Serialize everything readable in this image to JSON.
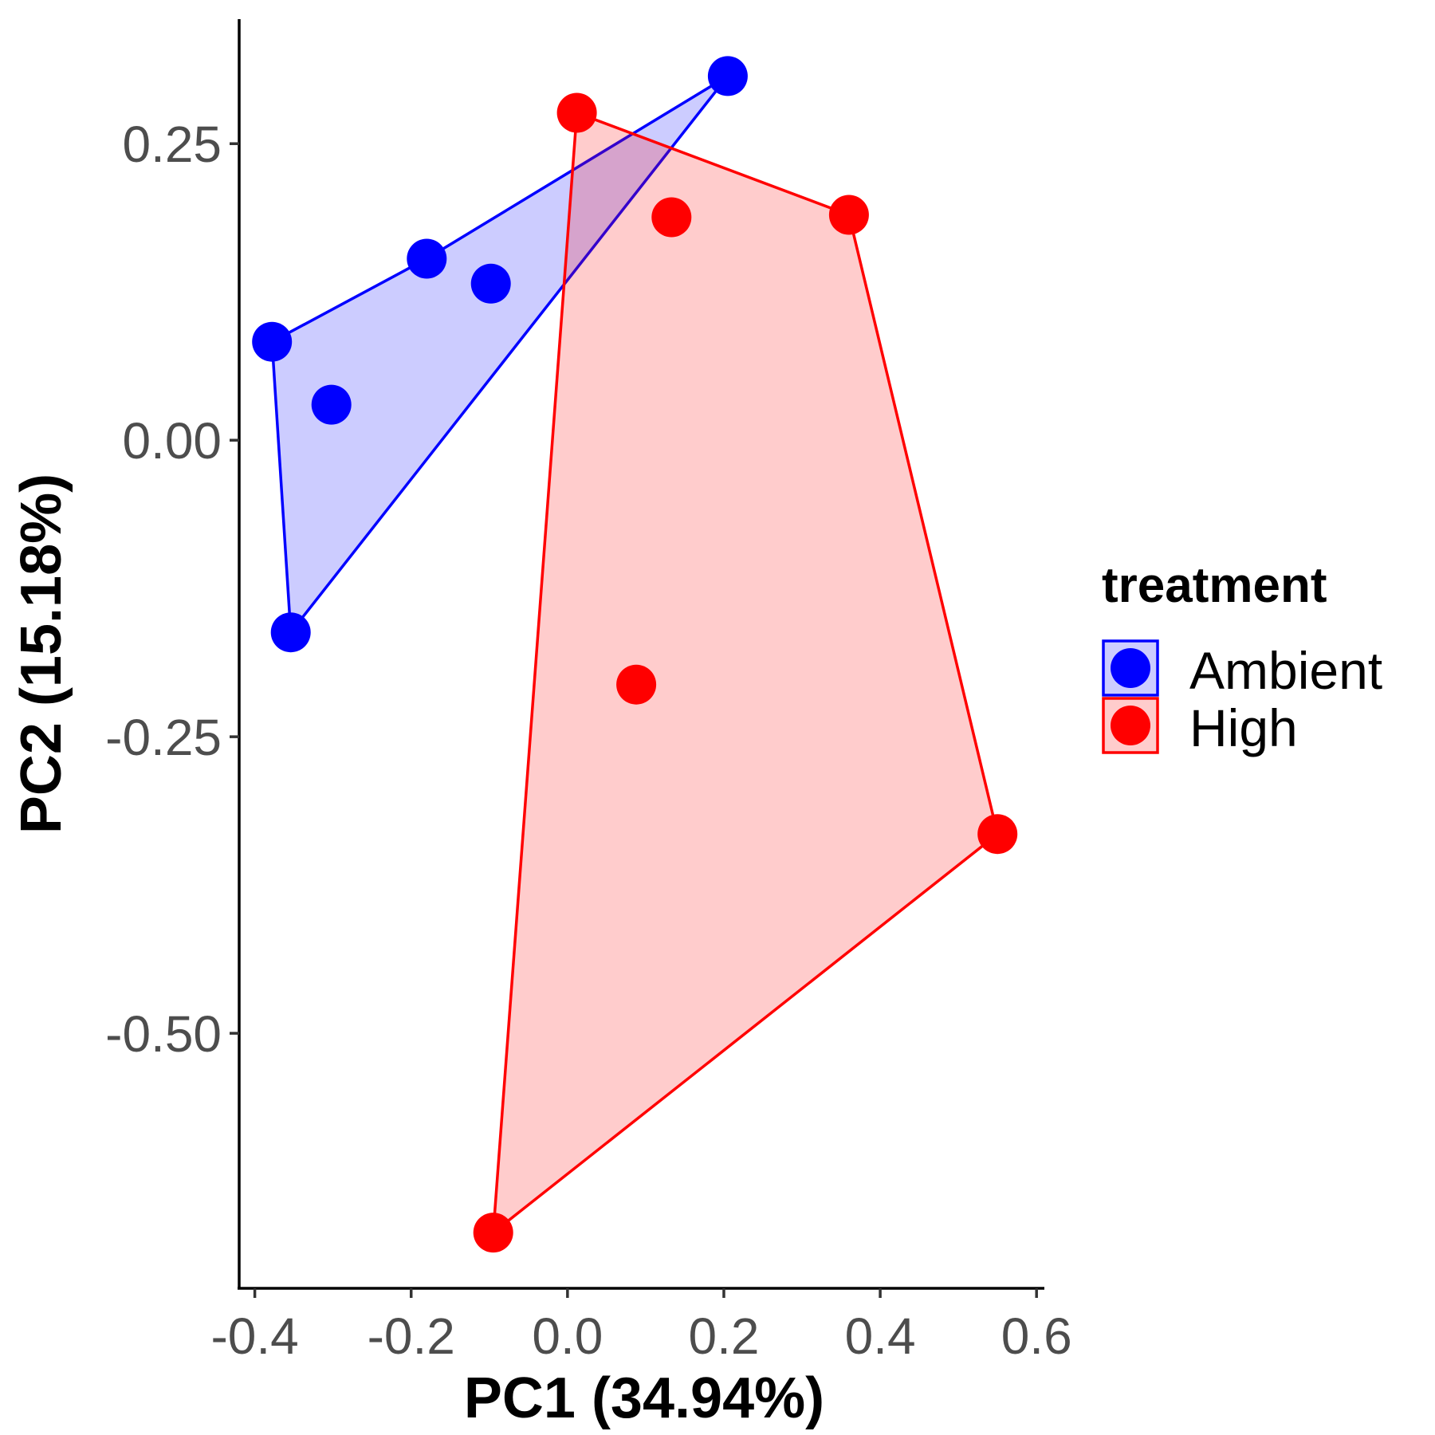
{
  "chart_data": {
    "type": "scatter",
    "title": "",
    "xlabel": "PC1 (34.94%)",
    "ylabel": "PC2 (15.18%)",
    "xlim": [
      -0.42,
      0.61
    ],
    "ylim": [
      -0.715,
      0.355
    ],
    "x_ticks": [
      -0.4,
      -0.2,
      0.0,
      0.2,
      0.4,
      0.6
    ],
    "x_tick_labels": [
      "-0.4",
      "-0.2",
      "0.0",
      "0.2",
      "0.4",
      "0.6"
    ],
    "y_ticks": [
      0.25,
      0.0,
      -0.25,
      -0.5
    ],
    "y_tick_labels": [
      "0.25",
      "0.00",
      "-0.25",
      "-0.50"
    ],
    "grid": false,
    "legend": {
      "title": "treatment",
      "position": "right"
    },
    "series": [
      {
        "name": "Ambient",
        "color": "#0000ff",
        "fill": "#0000ff",
        "hull": [
          {
            "x": -0.378,
            "y": 0.083
          },
          {
            "x": -0.354,
            "y": -0.162
          },
          {
            "x": 0.205,
            "y": 0.307
          },
          {
            "x": -0.18,
            "y": 0.153
          }
        ],
        "points": [
          {
            "x": -0.378,
            "y": 0.083
          },
          {
            "x": -0.302,
            "y": 0.03
          },
          {
            "x": -0.18,
            "y": 0.153
          },
          {
            "x": -0.098,
            "y": 0.132
          },
          {
            "x": -0.354,
            "y": -0.162
          },
          {
            "x": 0.205,
            "y": 0.307
          }
        ]
      },
      {
        "name": "High",
        "color": "#ff0000",
        "fill": "#ff0000",
        "hull": [
          {
            "x": 0.012,
            "y": 0.276
          },
          {
            "x": -0.095,
            "y": -0.668
          },
          {
            "x": 0.55,
            "y": -0.332
          },
          {
            "x": 0.36,
            "y": 0.19
          }
        ],
        "points": [
          {
            "x": 0.012,
            "y": 0.276
          },
          {
            "x": 0.133,
            "y": 0.188
          },
          {
            "x": 0.36,
            "y": 0.19
          },
          {
            "x": 0.088,
            "y": -0.206
          },
          {
            "x": 0.55,
            "y": -0.332
          },
          {
            "x": -0.095,
            "y": -0.668
          }
        ]
      }
    ]
  }
}
